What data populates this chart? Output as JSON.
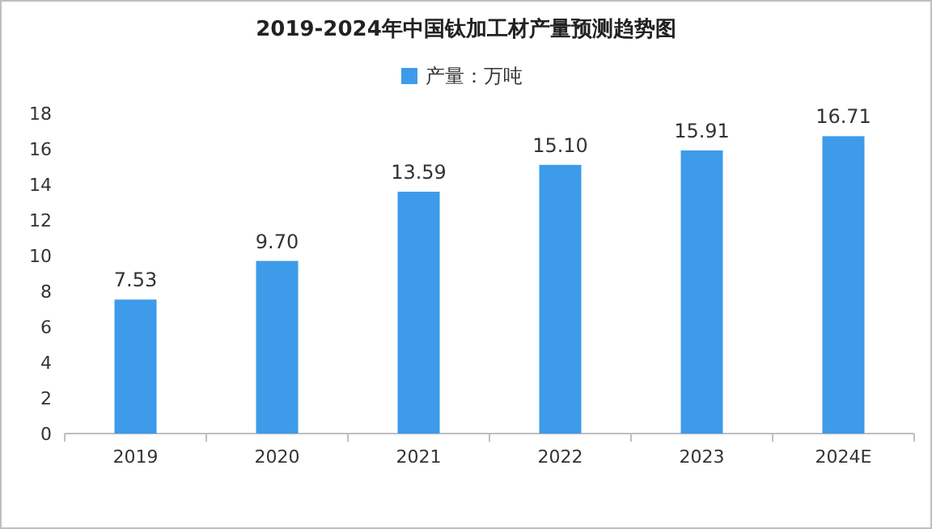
{
  "chart_data": {
    "type": "bar",
    "title": "2019-2024年中国钛加工材产量预测趋势图",
    "categories": [
      "2019",
      "2020",
      "2021",
      "2022",
      "2023",
      "2024E"
    ],
    "series": [
      {
        "name": "产量：万吨",
        "color": "#3d9be9",
        "values": [
          7.53,
          9.7,
          13.59,
          15.1,
          15.91,
          16.71
        ],
        "value_labels": [
          "7.53",
          "9.70",
          "13.59",
          "15.10",
          "15.91",
          "16.71"
        ]
      }
    ],
    "ylim": [
      0,
      18
    ],
    "yticks": [
      0,
      2,
      4,
      6,
      8,
      10,
      12,
      14,
      16,
      18
    ],
    "legend": "top",
    "grid": false
  }
}
